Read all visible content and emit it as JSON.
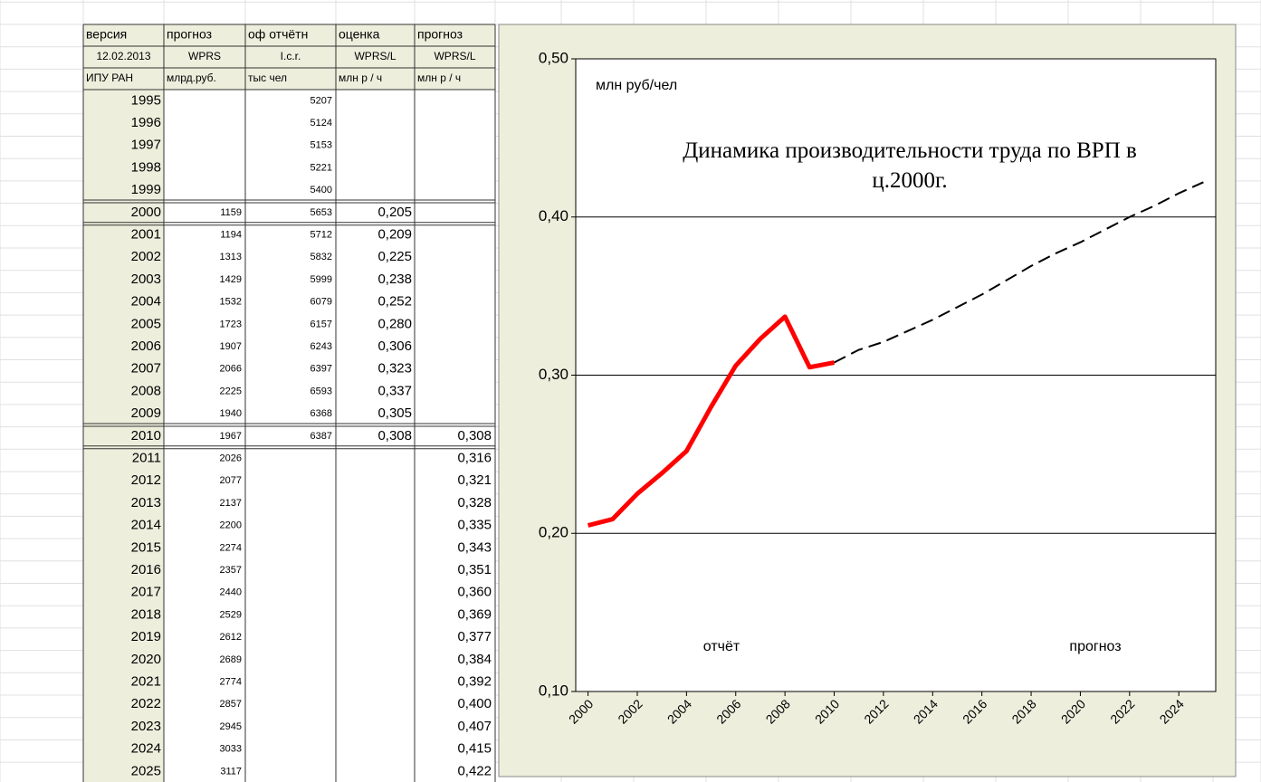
{
  "table": {
    "header": [
      [
        "версия",
        "прогноз",
        "оф отчётн",
        "оценка",
        "прогноз"
      ],
      [
        "12.02.2013",
        "WPRS",
        "I.c.r.",
        "WPRS/L",
        "WPRS/L"
      ],
      [
        "ИПУ РАН",
        "млрд.руб.",
        "тыс чел",
        "млн  р / ч",
        "млн  р / ч"
      ]
    ],
    "rows": [
      {
        "year": 1995,
        "employed": 5207
      },
      {
        "year": 1996,
        "employed": 5124
      },
      {
        "year": 1997,
        "employed": 5153
      },
      {
        "year": 1998,
        "employed": 5221
      },
      {
        "year": 1999,
        "employed": 5400
      },
      {
        "year": 2000,
        "grp": 1159,
        "employed": 5653,
        "estimate": "0,205"
      },
      {
        "year": 2001,
        "grp": 1194,
        "employed": 5712,
        "estimate": "0,209"
      },
      {
        "year": 2002,
        "grp": 1313,
        "employed": 5832,
        "estimate": "0,225"
      },
      {
        "year": 2003,
        "grp": 1429,
        "employed": 5999,
        "estimate": "0,238"
      },
      {
        "year": 2004,
        "grp": 1532,
        "employed": 6079,
        "estimate": "0,252"
      },
      {
        "year": 2005,
        "grp": 1723,
        "employed": 6157,
        "estimate": "0,280"
      },
      {
        "year": 2006,
        "grp": 1907,
        "employed": 6243,
        "estimate": "0,306"
      },
      {
        "year": 2007,
        "grp": 2066,
        "employed": 6397,
        "estimate": "0,323"
      },
      {
        "year": 2008,
        "grp": 2225,
        "employed": 6593,
        "estimate": "0,337"
      },
      {
        "year": 2009,
        "grp": 1940,
        "employed": 6368,
        "estimate": "0,305"
      },
      {
        "year": 2010,
        "grp": 1967,
        "employed": 6387,
        "estimate": "0,308",
        "forecast": "0,308"
      },
      {
        "year": 2011,
        "grp": 2026,
        "forecast": "0,316"
      },
      {
        "year": 2012,
        "grp": 2077,
        "forecast": "0,321"
      },
      {
        "year": 2013,
        "grp": 2137,
        "forecast": "0,328"
      },
      {
        "year": 2014,
        "grp": 2200,
        "forecast": "0,335"
      },
      {
        "year": 2015,
        "grp": 2274,
        "forecast": "0,343"
      },
      {
        "year": 2016,
        "grp": 2357,
        "forecast": "0,351"
      },
      {
        "year": 2017,
        "grp": 2440,
        "forecast": "0,360"
      },
      {
        "year": 2018,
        "grp": 2529,
        "forecast": "0,369"
      },
      {
        "year": 2019,
        "grp": 2612,
        "forecast": "0,377"
      },
      {
        "year": 2020,
        "grp": 2689,
        "forecast": "0,384"
      },
      {
        "year": 2021,
        "grp": 2774,
        "forecast": "0,392"
      },
      {
        "year": 2022,
        "grp": 2857,
        "forecast": "0,400"
      },
      {
        "year": 2023,
        "grp": 2945,
        "forecast": "0,407"
      },
      {
        "year": 2024,
        "grp": 3033,
        "forecast": "0,415"
      },
      {
        "year": 2025,
        "grp": 3117,
        "forecast": "0,422"
      }
    ]
  },
  "chart_data": {
    "type": "line",
    "title": "Динамика производительности труда по ВРП в ц.2000г.",
    "y_label": "млн руб/чел",
    "annotations": [
      "отчёт",
      "прогноз"
    ],
    "x": [
      2000,
      2001,
      2002,
      2003,
      2004,
      2005,
      2006,
      2007,
      2008,
      2009,
      2010,
      2011,
      2012,
      2013,
      2014,
      2015,
      2016,
      2017,
      2018,
      2019,
      2020,
      2021,
      2022,
      2023,
      2024,
      2025
    ],
    "series": [
      {
        "color": "#ff0000",
        "line_style": "solid",
        "values": [
          0.205,
          0.209,
          0.225,
          0.238,
          0.252,
          0.28,
          0.306,
          0.323,
          0.337,
          0.305,
          0.308,
          null,
          null,
          null,
          null,
          null,
          null,
          null,
          null,
          null,
          null,
          null,
          null,
          null,
          null,
          null
        ]
      },
      {
        "color": "#000000",
        "line_style": "dashed",
        "values": [
          null,
          null,
          null,
          null,
          null,
          null,
          null,
          null,
          null,
          null,
          0.308,
          0.316,
          0.321,
          0.328,
          0.335,
          0.343,
          0.351,
          0.36,
          0.369,
          0.377,
          0.384,
          0.392,
          0.4,
          0.407,
          0.415,
          0.422
        ]
      }
    ],
    "xlim": [
      1999.5,
      2025.5
    ],
    "xticks": [
      2000,
      2002,
      2004,
      2006,
      2008,
      2010,
      2012,
      2014,
      2016,
      2018,
      2020,
      2022,
      2024
    ],
    "ylim": [
      0.1,
      0.5
    ],
    "yticks": [
      {
        "value": 0.1,
        "label": "0,10"
      },
      {
        "value": 0.2,
        "label": "0,20"
      },
      {
        "value": 0.3,
        "label": "0,30"
      },
      {
        "value": 0.4,
        "label": "0,40"
      },
      {
        "value": 0.5,
        "label": "0,50"
      }
    ],
    "grid": true
  }
}
